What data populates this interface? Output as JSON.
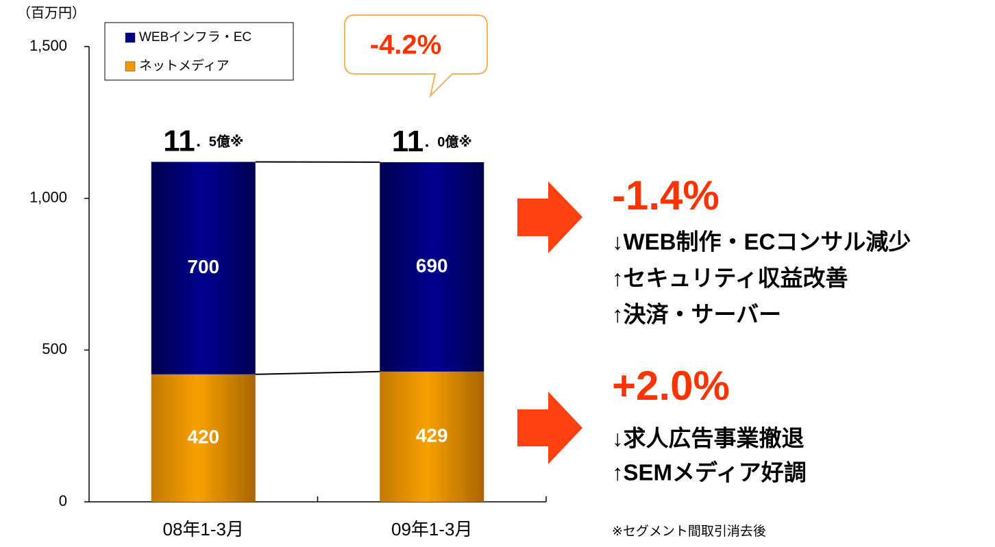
{
  "chart_data": {
    "type": "bar",
    "stacked": true,
    "y_unit_label": "（百万円）",
    "categories": [
      "08年1-3月",
      "09年1-3月"
    ],
    "series": [
      {
        "name": "ネットメディア",
        "color": "#f39800",
        "values": [
          420,
          429
        ]
      },
      {
        "name": "WEBインフラ・EC",
        "color": "#000080",
        "values": [
          700,
          690
        ]
      }
    ],
    "ylim": [
      0,
      1500
    ],
    "yticks": [
      0,
      500,
      {
        "value": 1000,
        "label": "1,000"
      },
      {
        "value": 1500,
        "label": "1,500"
      }
    ],
    "total_labels": [
      {
        "big": "11",
        "small": "．5億※"
      },
      {
        "big": "11",
        "small": "．0億※"
      }
    ],
    "change_callout": "-4.2%",
    "segment_notes": [
      {
        "change": "-1.4%",
        "lines": [
          "↓WEB制作・ECコンサル減少",
          "↑セキュリティ収益改善",
          "↑決済・サーバー"
        ]
      },
      {
        "change": "+2.0%",
        "lines": [
          "↓求人広告事業撤退",
          "↑SEMメディア好調"
        ]
      }
    ],
    "footnote": "※セグメント間取引消去後"
  }
}
